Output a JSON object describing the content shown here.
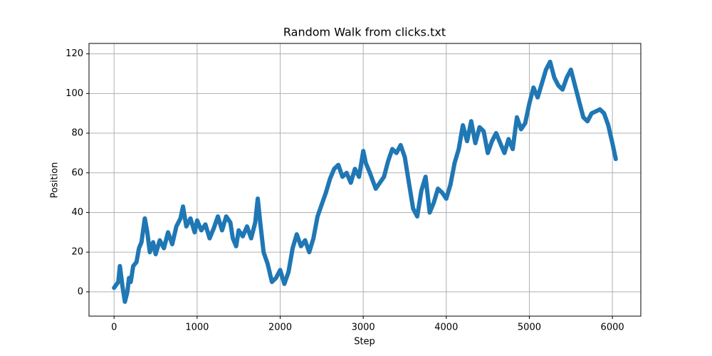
{
  "chart_data": {
    "type": "line",
    "title": "Random Walk from clicks.txt",
    "x_label": "Step",
    "y_label": "Position",
    "x": [
      0,
      50,
      70,
      100,
      130,
      160,
      180,
      200,
      230,
      270,
      300,
      330,
      370,
      400,
      430,
      470,
      500,
      550,
      600,
      650,
      700,
      750,
      800,
      830,
      870,
      920,
      970,
      1000,
      1050,
      1100,
      1150,
      1200,
      1250,
      1300,
      1350,
      1400,
      1430,
      1470,
      1500,
      1550,
      1600,
      1650,
      1700,
      1730,
      1760,
      1800,
      1850,
      1900,
      1950,
      2000,
      2050,
      2100,
      2150,
      2200,
      2250,
      2300,
      2350,
      2400,
      2450,
      2500,
      2550,
      2600,
      2650,
      2700,
      2750,
      2800,
      2850,
      2900,
      2950,
      3000,
      3030,
      3080,
      3150,
      3200,
      3250,
      3300,
      3350,
      3400,
      3450,
      3500,
      3550,
      3600,
      3650,
      3700,
      3750,
      3800,
      3850,
      3900,
      3950,
      4000,
      4050,
      4100,
      4150,
      4200,
      4250,
      4300,
      4350,
      4400,
      4450,
      4500,
      4550,
      4600,
      4650,
      4700,
      4750,
      4800,
      4850,
      4900,
      4950,
      5000,
      5050,
      5100,
      5150,
      5200,
      5250,
      5300,
      5350,
      5400,
      5450,
      5500,
      5550,
      5600,
      5650,
      5700,
      5750,
      5800,
      5850,
      5900,
      5950,
      6000,
      6040
    ],
    "values": [
      2,
      5,
      13,
      3,
      -5,
      0,
      7,
      5,
      13,
      15,
      22,
      25,
      37,
      30,
      20,
      25,
      19,
      26,
      22,
      30,
      24,
      33,
      37,
      43,
      33,
      37,
      30,
      36,
      31,
      34,
      27,
      32,
      38,
      31,
      38,
      35,
      27,
      23,
      31,
      28,
      33,
      27,
      35,
      47,
      35,
      20,
      14,
      5,
      7,
      11,
      4,
      10,
      22,
      29,
      23,
      26,
      20,
      27,
      38,
      44,
      50,
      57,
      62,
      64,
      58,
      60,
      55,
      62,
      58,
      71,
      65,
      60,
      52,
      55,
      58,
      66,
      72,
      70,
      74,
      68,
      55,
      42,
      38,
      51,
      58,
      40,
      45,
      52,
      50,
      47,
      54,
      65,
      72,
      84,
      76,
      86,
      75,
      83,
      81,
      70,
      76,
      80,
      75,
      70,
      77,
      72,
      88,
      82,
      85,
      95,
      103,
      98,
      105,
      112,
      116,
      108,
      104,
      102,
      108,
      112,
      104,
      96,
      88,
      86,
      90,
      91,
      92,
      90,
      84,
      75,
      67
    ],
    "color": "#1f77b4",
    "xlim": [
      -302,
      6342
    ],
    "ylim": [
      -12.25,
      125.25
    ],
    "xticks": [
      0,
      1000,
      2000,
      3000,
      4000,
      5000,
      6000
    ],
    "yticks": [
      0,
      20,
      40,
      60,
      80,
      100,
      120
    ],
    "grid": true
  }
}
